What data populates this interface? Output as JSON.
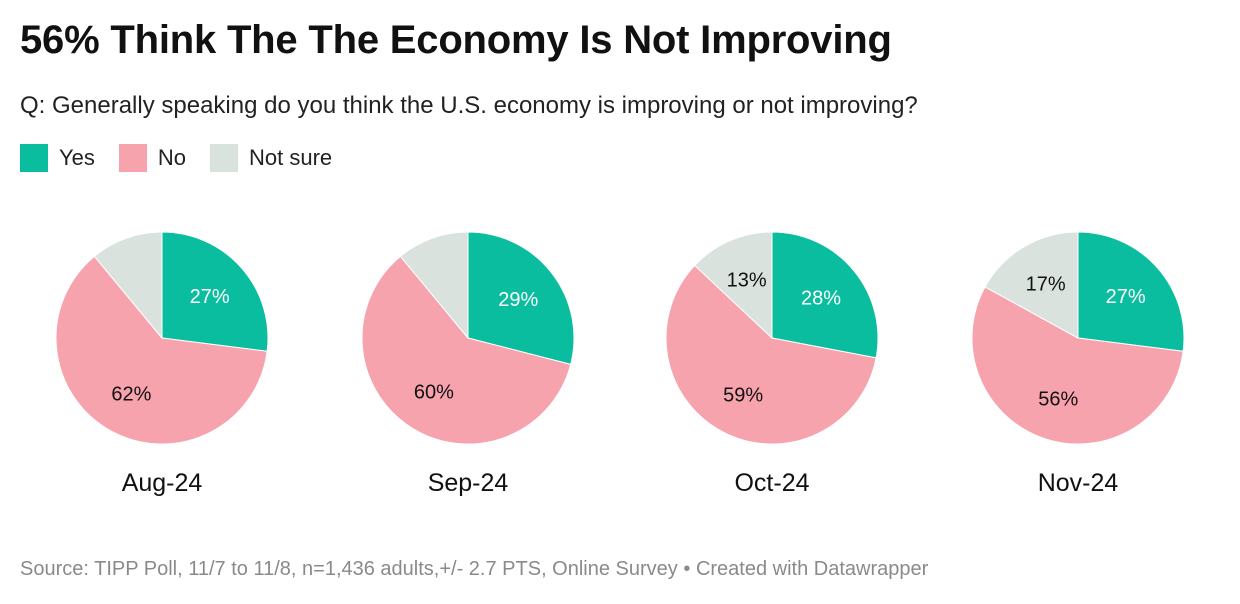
{
  "title": "56% Think The The Economy Is Not Improving",
  "subtitle": "Q: Generally speaking do you think the U.S. economy is improving or not improving?",
  "legend": [
    {
      "label": "Yes",
      "color": "#0bbd9f"
    },
    {
      "label": "No",
      "color": "#f7a3ae"
    },
    {
      "label": "Not sure",
      "color": "#d9e2dd"
    }
  ],
  "footer": {
    "source": "Source: TIPP Poll, 11/7 to 11/8, n=1,436 adults,+/- 2.7 PTS, Online Survey",
    "separator": "•",
    "credit": "Created with Datawrapper"
  },
  "chart_data": [
    {
      "type": "pie",
      "title": "Aug-24",
      "labels": [
        "Yes",
        "No",
        "Not sure"
      ],
      "values": [
        27,
        62,
        11
      ],
      "data_labels": [
        "27%",
        "62%",
        ""
      ]
    },
    {
      "type": "pie",
      "title": "Sep-24",
      "labels": [
        "Yes",
        "No",
        "Not sure"
      ],
      "values": [
        29,
        60,
        11
      ],
      "data_labels": [
        "29%",
        "60%",
        ""
      ]
    },
    {
      "type": "pie",
      "title": "Oct-24",
      "labels": [
        "Yes",
        "No",
        "Not sure"
      ],
      "values": [
        28,
        59,
        13
      ],
      "data_labels": [
        "28%",
        "59%",
        "13%"
      ]
    },
    {
      "type": "pie",
      "title": "Nov-24",
      "labels": [
        "Yes",
        "No",
        "Not sure"
      ],
      "values": [
        27,
        56,
        17
      ],
      "data_labels": [
        "27%",
        "56%",
        "17%"
      ]
    }
  ]
}
